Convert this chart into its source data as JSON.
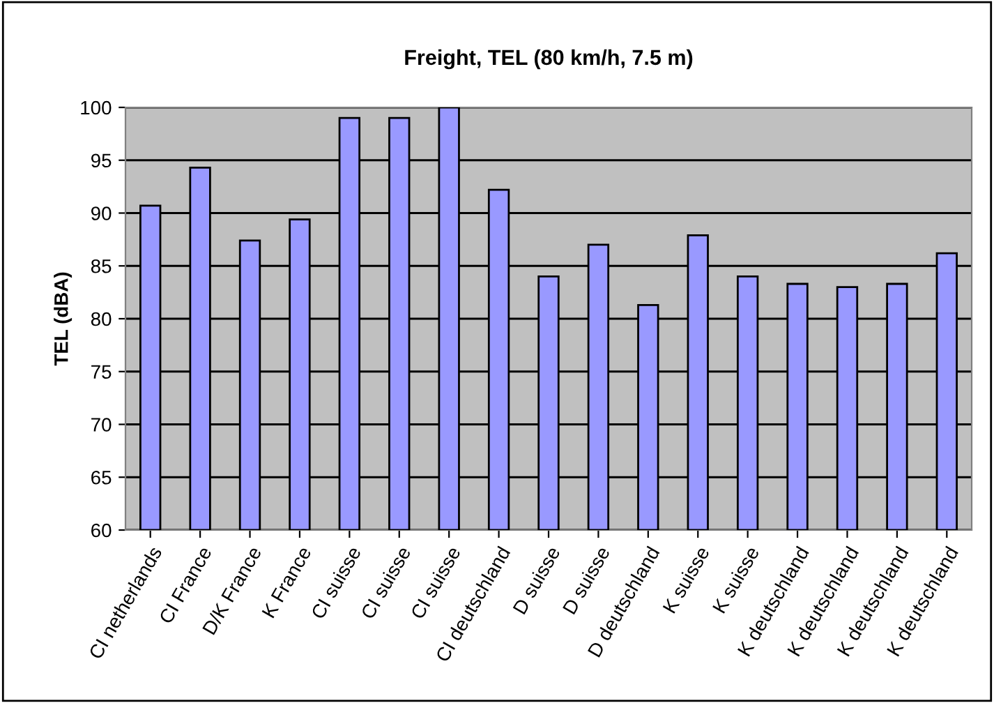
{
  "chart_data": {
    "type": "bar",
    "title": "Freight, TEL (80 km/h, 7.5 m)",
    "ylabel": "TEL (dBA)",
    "categories": [
      "CI netherlands",
      "CI France",
      "D/K France",
      "K France",
      "CI suisse",
      "CI suisse",
      "CI suisse",
      "CI deutschland",
      "D suisse",
      "D suisse",
      "D deutschland",
      "K suisse",
      "K suisse",
      "K deutschland",
      "K deutschland",
      "K deutschland",
      "K deutschland"
    ],
    "values": [
      90.7,
      94.3,
      87.4,
      89.4,
      99,
      99,
      100,
      92.2,
      84,
      87,
      81.3,
      87.9,
      84,
      83.3,
      83,
      83.3,
      86.2
    ],
    "color": "#9999ff",
    "ylim": [
      60,
      100
    ],
    "yticks": [
      60,
      65,
      70,
      75,
      80,
      85,
      90,
      95,
      100
    ],
    "grid": "y",
    "legend": false
  }
}
